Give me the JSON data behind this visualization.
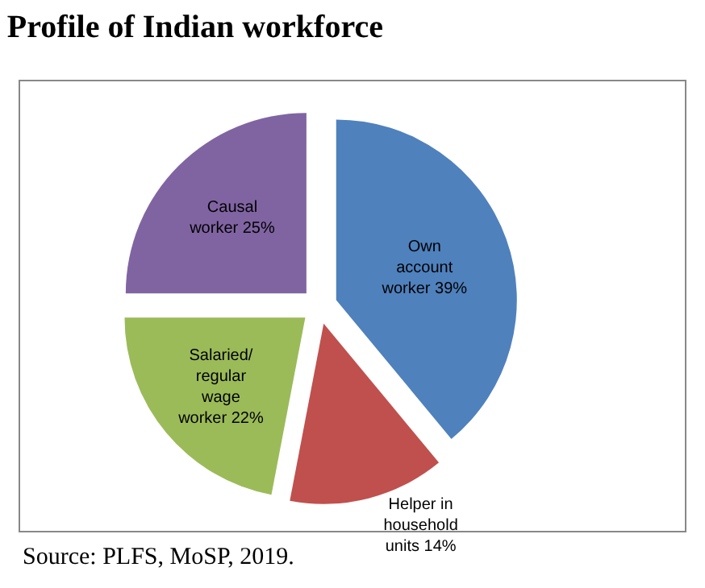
{
  "chart_data": {
    "type": "pie",
    "title": "Profile of Indian workforce",
    "categories": [
      "Own account worker",
      "Helper in household units",
      "Salaried/ regular wage worker",
      "Causal worker"
    ],
    "values": [
      39,
      14,
      22,
      25
    ],
    "value_labels": [
      "39%",
      "14%",
      "22%",
      "25%"
    ],
    "colors": [
      "#4f81bd",
      "#c0504d",
      "#9bbb59",
      "#8064a2"
    ],
    "legend": false,
    "annotations": [
      "Source: PLFS, MoSP, 2019."
    ]
  }
}
